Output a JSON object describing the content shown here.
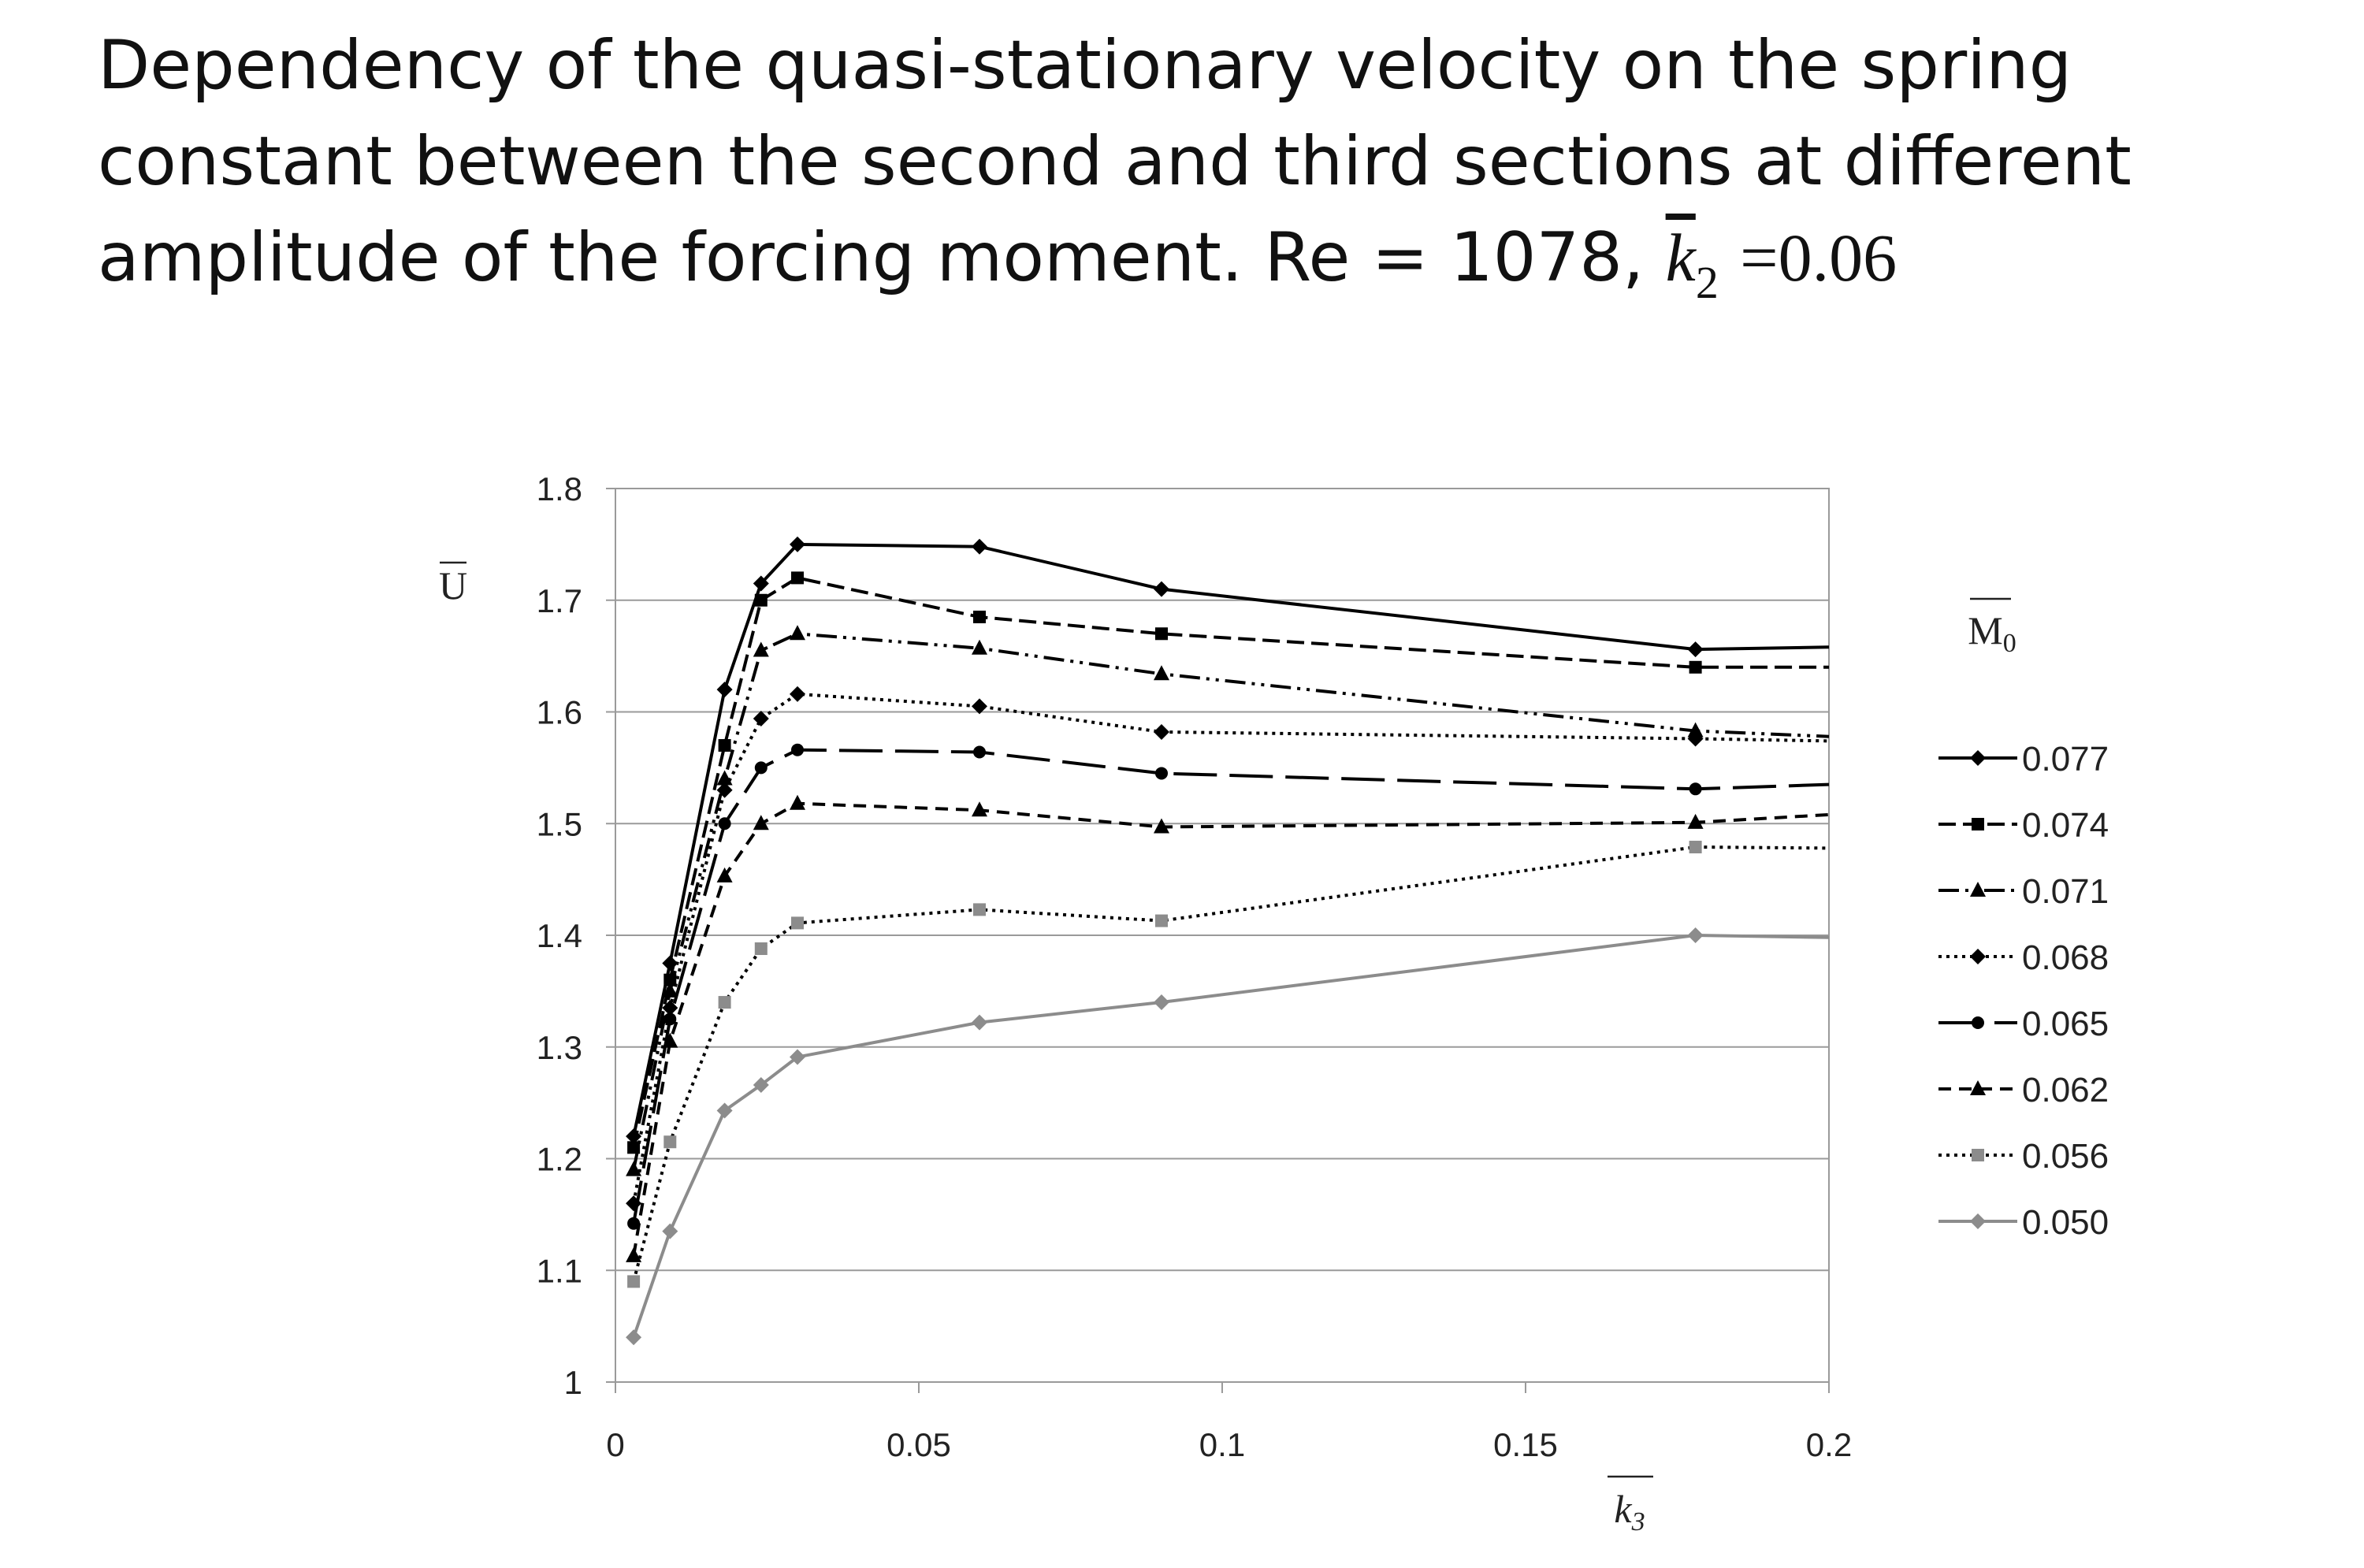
{
  "title": {
    "text": "Dependency of the quasi-stationary velocity on the spring constant between the second and third sections at different amplitude of the forcing moment. Re = 1078, ",
    "k_symbol": "k",
    "k_subscript": "2",
    "k_value": "=0.06"
  },
  "chart_data": {
    "type": "line",
    "xlabel": "k3",
    "ylabel": "U",
    "legend_title": "M0",
    "legend_position": "right",
    "xlim": [
      0,
      0.2
    ],
    "ylim": [
      1,
      1.8
    ],
    "xticks": [
      0,
      0.05,
      0.1,
      0.15,
      0.2
    ],
    "xtick_labels": [
      "0",
      "0.05",
      "0.1",
      "0.15",
      "0.2"
    ],
    "yticks": [
      1,
      1.1,
      1.2,
      1.3,
      1.4,
      1.5,
      1.6,
      1.7,
      1.8
    ],
    "ytick_labels": [
      "1",
      "1.1",
      "1.2",
      "1.3",
      "1.4",
      "1.5",
      "1.6",
      "1.7",
      "1.8"
    ],
    "grid": "horizontal",
    "x": [
      0.003,
      0.009,
      0.018,
      0.024,
      0.03,
      0.06,
      0.09,
      0.178,
      0.2
    ],
    "series": [
      {
        "name": "0.077",
        "color": "#000000",
        "dash": "",
        "marker": "diamond",
        "values": [
          1.22,
          1.375,
          1.62,
          1.715,
          1.75,
          1.748,
          1.71,
          1.656,
          1.658
        ]
      },
      {
        "name": "0.074",
        "color": "#000000",
        "dash": "22,9",
        "marker": "square",
        "values": [
          1.21,
          1.36,
          1.57,
          1.7,
          1.72,
          1.685,
          1.67,
          1.64,
          1.64
        ]
      },
      {
        "name": "0.071",
        "color": "#000000",
        "dash": "26,8,4,8,4,8",
        "marker": "triangle",
        "values": [
          1.19,
          1.35,
          1.54,
          1.655,
          1.67,
          1.657,
          1.634,
          1.583,
          1.578
        ]
      },
      {
        "name": "0.068",
        "color": "#000000",
        "dash": "4,6",
        "marker": "diamond",
        "values": [
          1.16,
          1.335,
          1.53,
          1.594,
          1.616,
          1.605,
          1.582,
          1.576,
          1.574
        ]
      },
      {
        "name": "0.065",
        "color": "#000000",
        "dash": "55,16",
        "marker": "circle",
        "values": [
          1.142,
          1.325,
          1.5,
          1.55,
          1.566,
          1.564,
          1.545,
          1.531,
          1.535
        ]
      },
      {
        "name": "0.062",
        "color": "#000000",
        "dash": "16,10",
        "marker": "triangle",
        "values": [
          1.113,
          1.305,
          1.453,
          1.5,
          1.518,
          1.512,
          1.497,
          1.501,
          1.508
        ]
      },
      {
        "name": "0.056",
        "color": "#000000",
        "dash": "4,6",
        "marker": "square-gray",
        "values": [
          1.09,
          1.215,
          1.34,
          1.388,
          1.411,
          1.423,
          1.413,
          1.479,
          1.478
        ]
      },
      {
        "name": "0.050",
        "color": "#8c8c8c",
        "dash": "",
        "marker": "diamond-gray",
        "values": [
          1.04,
          1.135,
          1.243,
          1.266,
          1.291,
          1.322,
          1.34,
          1.4,
          1.398
        ]
      }
    ]
  }
}
